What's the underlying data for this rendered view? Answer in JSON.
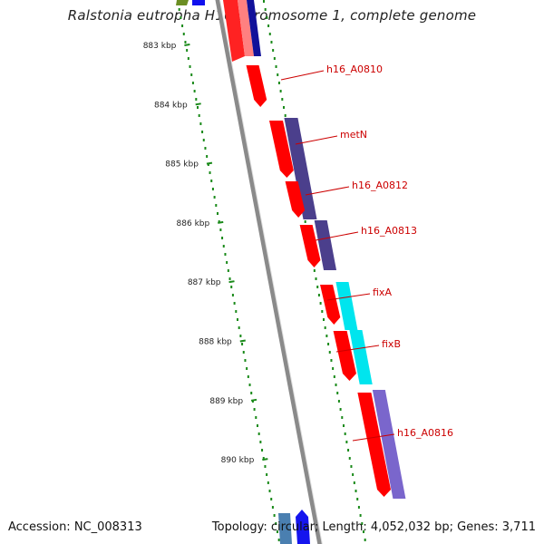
{
  "header": {
    "title": "Ralstonia eutropha H16 chromosome 1, complete genome"
  },
  "footer": {
    "accession": "Accession: NC_008313",
    "summary": "Topology: circular; Length: 4,052,032 bp; Genes: 3,711"
  },
  "scale": {
    "unit": "kbp",
    "ticks": [
      {
        "kbp": 883,
        "label": "883 kbp"
      },
      {
        "kbp": 884,
        "label": "884 kbp"
      },
      {
        "kbp": 885,
        "label": "885 kbp"
      },
      {
        "kbp": 886,
        "label": "886 kbp"
      },
      {
        "kbp": 887,
        "label": "887 kbp"
      },
      {
        "kbp": 888,
        "label": "888 kbp"
      },
      {
        "kbp": 889,
        "label": "889 kbp"
      },
      {
        "kbp": 890,
        "label": "890 kbp"
      }
    ]
  },
  "colors": {
    "backbone": "#8a8a8a",
    "cds": "#ff0000",
    "gc_dots": "#1a8a1a",
    "label": "#cc0000",
    "metN_track": "#4b3f8c",
    "h16_A0813_track": "#4b3f8c",
    "fix_track": "#00e5ee",
    "h16_A0816_track": "#7a66cc"
  },
  "genes": [
    {
      "label": "h16_A0810",
      "name": "h16_A0810"
    },
    {
      "label": "metN",
      "name": "metN"
    },
    {
      "label": "h16_A0812",
      "name": "h16_A0812"
    },
    {
      "label": "h16_A0813",
      "name": "h16_A0813"
    },
    {
      "label": "fixA",
      "name": "fixA"
    },
    {
      "label": "fixB",
      "name": "fixB"
    },
    {
      "label": "h16_A0816",
      "name": "h16_A0816"
    }
  ]
}
